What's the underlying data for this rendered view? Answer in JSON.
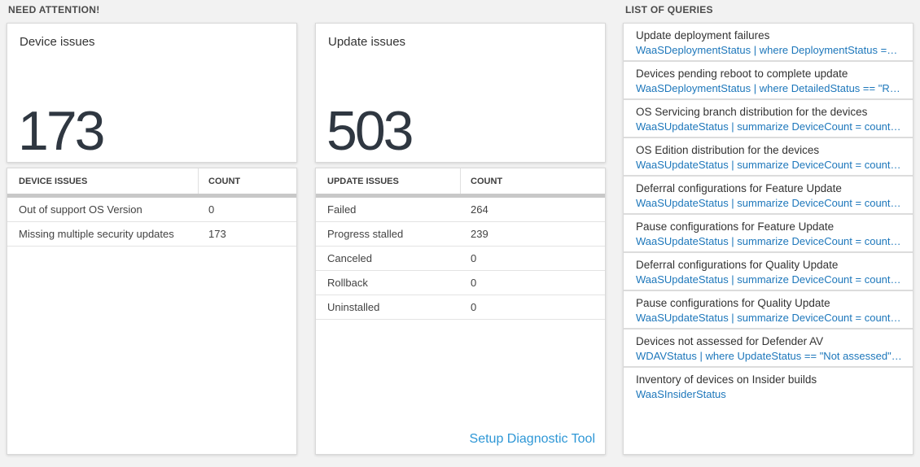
{
  "sections": {
    "need_attention": "NEED ATTENTION!",
    "list_of_queries": "LIST OF QUERIES"
  },
  "device_issues": {
    "title": "Device issues",
    "count": "173",
    "table": {
      "headers": [
        "DEVICE ISSUES",
        "COUNT"
      ],
      "rows": [
        {
          "label": "Out of support OS Version",
          "count": "0"
        },
        {
          "label": "Missing multiple security updates",
          "count": "173"
        }
      ]
    }
  },
  "update_issues": {
    "title": "Update issues",
    "count": "503",
    "table": {
      "headers": [
        "UPDATE ISSUES",
        "COUNT"
      ],
      "rows": [
        {
          "label": "Failed",
          "count": "264"
        },
        {
          "label": "Progress stalled",
          "count": "239"
        },
        {
          "label": "Canceled",
          "count": "0"
        },
        {
          "label": "Rollback",
          "count": "0"
        },
        {
          "label": "Uninstalled",
          "count": "0"
        }
      ]
    },
    "setup_link": "Setup Diagnostic Tool"
  },
  "queries": {
    "items": [
      {
        "title": "Update deployment failures",
        "query": "WaaSDeploymentStatus | where DeploymentStatus == \"Failed\" |..."
      },
      {
        "title": "Devices pending reboot to complete update",
        "query": "WaaSDeploymentStatus | where DetailedStatus == \"Reboot pend..."
      },
      {
        "title": "OS Servicing branch distribution for the devices",
        "query": "WaaSUpdateStatus | summarize DeviceCount = count() by OSSer..."
      },
      {
        "title": "OS Edition distribution for the devices",
        "query": "WaaSUpdateStatus | summarize DeviceCount = count() by OSEdit..."
      },
      {
        "title": "Deferral configurations for Feature Update",
        "query": "WaaSUpdateStatus | summarize DeviceCount = count() by Featur..."
      },
      {
        "title": "Pause configurations for Feature Update",
        "query": "WaaSUpdateStatus | summarize DeviceCount = count() by Featur..."
      },
      {
        "title": "Deferral configurations for Quality Update",
        "query": "WaaSUpdateStatus | summarize DeviceCount = count() by Qualit..."
      },
      {
        "title": "Pause configurations for Quality Update",
        "query": "WaaSUpdateStatus | summarize DeviceCount = count() by Qualit..."
      },
      {
        "title": "Devices not assessed for Defender AV",
        "query": "WDAVStatus | where UpdateStatus == \"Not assessed\" | render ta..."
      },
      {
        "title": "Inventory of devices on Insider builds",
        "query": "WaaSInsiderStatus"
      }
    ]
  },
  "colors": {
    "page_background": "#f2f2f2",
    "card_background": "#ffffff",
    "card_border": "#d9d9d9",
    "big_number": "#2f3741",
    "query_link_blue": "#1d77bb",
    "setup_link_blue": "#2e97d6",
    "table_header_bar": "#c8c8c8"
  }
}
